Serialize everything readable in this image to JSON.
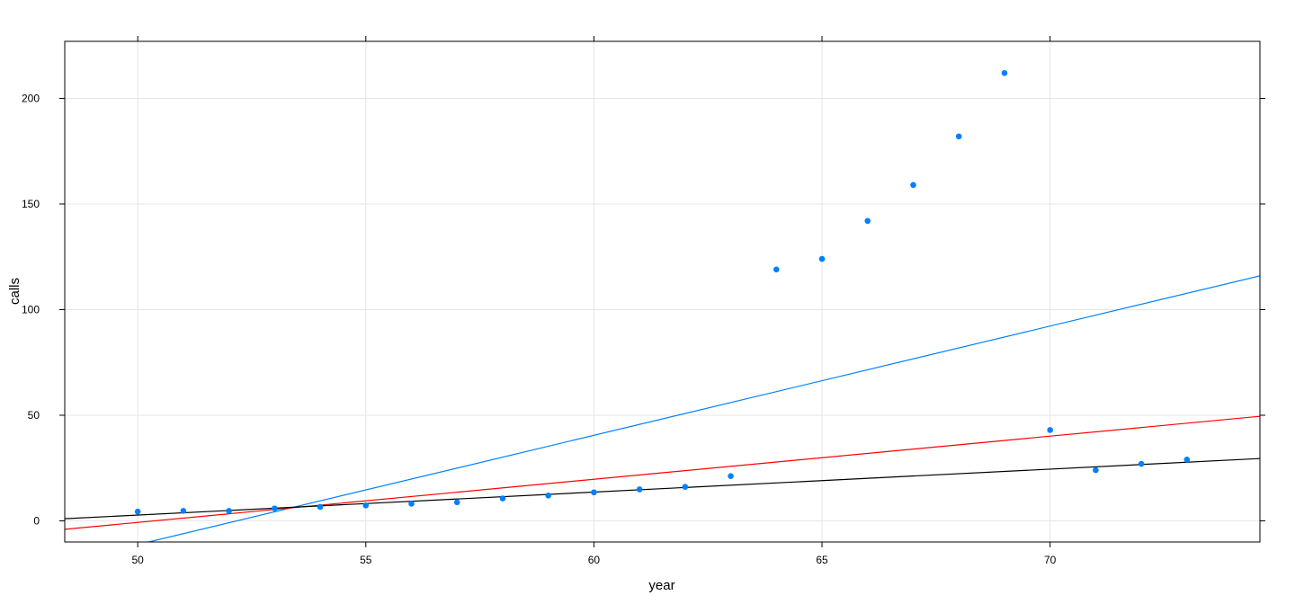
{
  "chart_data": {
    "type": "scatter",
    "xlabel": "year",
    "ylabel": "calls",
    "xlim": [
      48.4,
      74.6
    ],
    "ylim": [
      -10,
      227
    ],
    "x_ticks": [
      50,
      55,
      60,
      65,
      70
    ],
    "y_ticks": [
      0,
      50,
      100,
      150,
      200
    ],
    "grid": true,
    "points": {
      "color": "#0080ff",
      "x": [
        50,
        51,
        52,
        53,
        54,
        55,
        56,
        57,
        58,
        59,
        60,
        61,
        62,
        63,
        64,
        65,
        66,
        67,
        68,
        69,
        70,
        71,
        72,
        73
      ],
      "y": [
        4.4,
        4.7,
        4.7,
        5.9,
        6.6,
        7.3,
        8.1,
        8.8,
        10.6,
        12.0,
        13.5,
        14.9,
        16.1,
        21.2,
        119.0,
        124.0,
        142.0,
        159.0,
        182.0,
        212.0,
        43.0,
        24.0,
        27.0,
        29.0
      ]
    },
    "lines": [
      {
        "color": "#0080ff",
        "x": [
          48.4,
          74.6
        ],
        "y": [
          -19.5,
          116.0
        ]
      },
      {
        "color": "#ff0000",
        "x": [
          48.4,
          74.6
        ],
        "y": [
          -4.0,
          49.5
        ]
      },
      {
        "color": "#000000",
        "x": [
          48.4,
          74.6
        ],
        "y": [
          1.0,
          29.5
        ]
      }
    ]
  }
}
